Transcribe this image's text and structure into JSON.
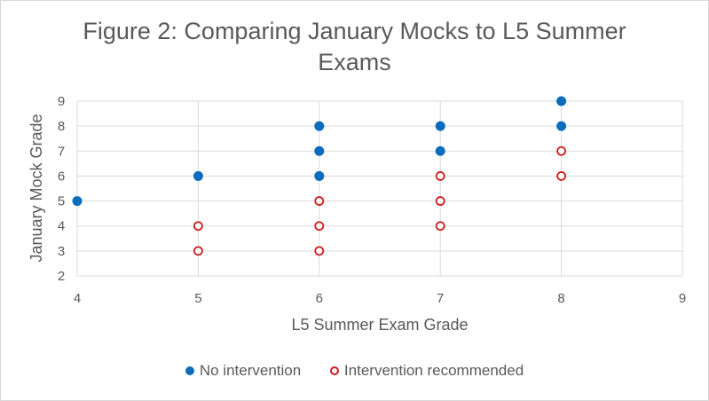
{
  "chart_data": {
    "type": "scatter",
    "title": [
      "Figure 2: Comparing January Mocks to L5 Summer",
      "Exams"
    ],
    "xlabel": "L5 Summer Exam Grade",
    "ylabel": "January Mock Grade",
    "xlim": [
      4,
      9
    ],
    "ylim": [
      2,
      9
    ],
    "x_ticks": [
      4,
      5,
      6,
      7,
      8,
      9
    ],
    "y_ticks": [
      2,
      3,
      4,
      5,
      6,
      7,
      8,
      9
    ],
    "grid": true,
    "legend_position": "bottom",
    "series": [
      {
        "name": "No intervention",
        "color": "#0b6cbd",
        "marker": "filled-circle",
        "points": [
          [
            4,
            5
          ],
          [
            5,
            6
          ],
          [
            6,
            8
          ],
          [
            6,
            7
          ],
          [
            6,
            6
          ],
          [
            7,
            8
          ],
          [
            7,
            7
          ],
          [
            8,
            9
          ],
          [
            8,
            8
          ]
        ]
      },
      {
        "name": "Intervention recommended",
        "color": "#d0191a",
        "marker": "open-circle",
        "points": [
          [
            5,
            4
          ],
          [
            5,
            3
          ],
          [
            6,
            5
          ],
          [
            6,
            4
          ],
          [
            6,
            3
          ],
          [
            7,
            6
          ],
          [
            7,
            5
          ],
          [
            7,
            4
          ],
          [
            8,
            7
          ],
          [
            8,
            6
          ]
        ]
      }
    ]
  }
}
